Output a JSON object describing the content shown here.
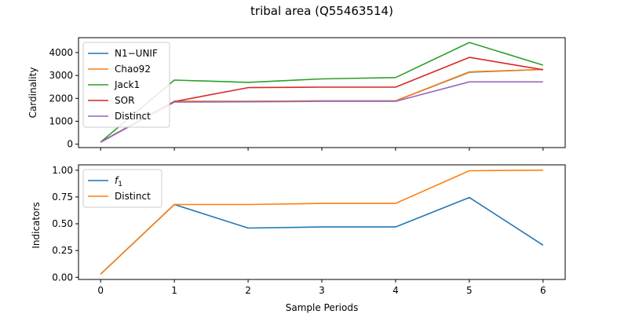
{
  "figure": {
    "title": "tribal area (Q55463514)",
    "xlabel": "Sample Periods"
  },
  "chart_data": [
    {
      "type": "line",
      "ylabel": "Cardinality",
      "x": [
        0,
        1,
        2,
        3,
        4,
        5,
        6
      ],
      "xlim": [
        -0.3,
        6.3
      ],
      "ylim": [
        -150,
        4650
      ],
      "yticks": [
        0,
        1000,
        2000,
        3000,
        4000
      ],
      "legend": "top-left",
      "series": [
        {
          "name": "N1−UNIF",
          "color": "#1f77b4",
          "values": [
            90,
            1870,
            1870,
            1890,
            1890,
            3140,
            3260
          ]
        },
        {
          "name": "Chao92",
          "color": "#ff7f0e",
          "values": [
            90,
            1870,
            1870,
            1890,
            1890,
            3160,
            3260
          ]
        },
        {
          "name": "Jack1",
          "color": "#2ca02c",
          "values": [
            90,
            2800,
            2700,
            2850,
            2910,
            4440,
            3450
          ]
        },
        {
          "name": "SOR",
          "color": "#d62728",
          "values": [
            90,
            1860,
            2470,
            2490,
            2490,
            3790,
            3250
          ]
        },
        {
          "name": "Distinct",
          "color": "#9467bd",
          "values": [
            90,
            1840,
            1850,
            1870,
            1870,
            2720,
            2720
          ]
        }
      ]
    },
    {
      "type": "line",
      "ylabel": "Indicators",
      "x": [
        0,
        1,
        2,
        3,
        4,
        5,
        6
      ],
      "xlim": [
        -0.3,
        6.3
      ],
      "ylim": [
        -0.02,
        1.05
      ],
      "yticks": [
        0.0,
        0.25,
        0.5,
        0.75,
        1.0
      ],
      "ytick_labels": [
        "0.00",
        "0.25",
        "0.50",
        "0.75",
        "1.00"
      ],
      "xticks": [
        0,
        1,
        2,
        3,
        4,
        5,
        6
      ],
      "legend": "top-left",
      "series": [
        {
          "name": "f1",
          "color": "#1f77b4",
          "values": [
            0.03,
            0.68,
            0.46,
            0.47,
            0.47,
            0.745,
            0.3
          ]
        },
        {
          "name": "Distinct",
          "color": "#ff7f0e",
          "values": [
            0.03,
            0.68,
            0.68,
            0.69,
            0.69,
            0.995,
            1.0
          ]
        }
      ]
    }
  ]
}
